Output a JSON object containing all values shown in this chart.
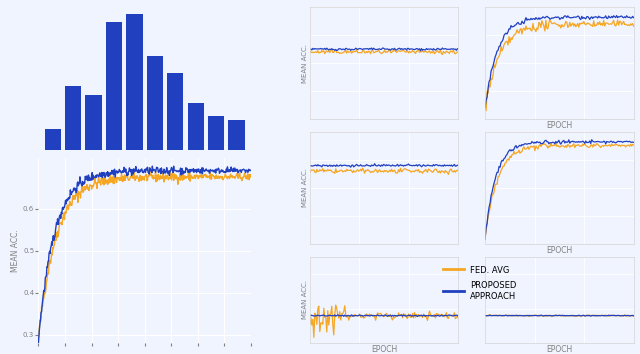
{
  "bar_heights": [
    0.5,
    1.5,
    1.3,
    3.0,
    3.2,
    2.2,
    1.8,
    1.1,
    0.8,
    0.7
  ],
  "bar_color": "#2040c0",
  "line_color_fed": "#f5a623",
  "line_color_proposed": "#2040c0",
  "background_color": "#f0f4ff",
  "main_ylim": [
    0.28,
    0.72
  ],
  "main_yticks": [
    0.3,
    0.4,
    0.5,
    0.6
  ],
  "ylabel": "MEAN ACC.",
  "xlabel_epoch": "EPOCH",
  "legend_fed": "FED. AVG",
  "legend_proposed": "PROPOSED\nAPPROACH",
  "title_fontsize": 7,
  "axis_label_fontsize": 5.5,
  "tick_fontsize": 5,
  "legend_fontsize": 6
}
